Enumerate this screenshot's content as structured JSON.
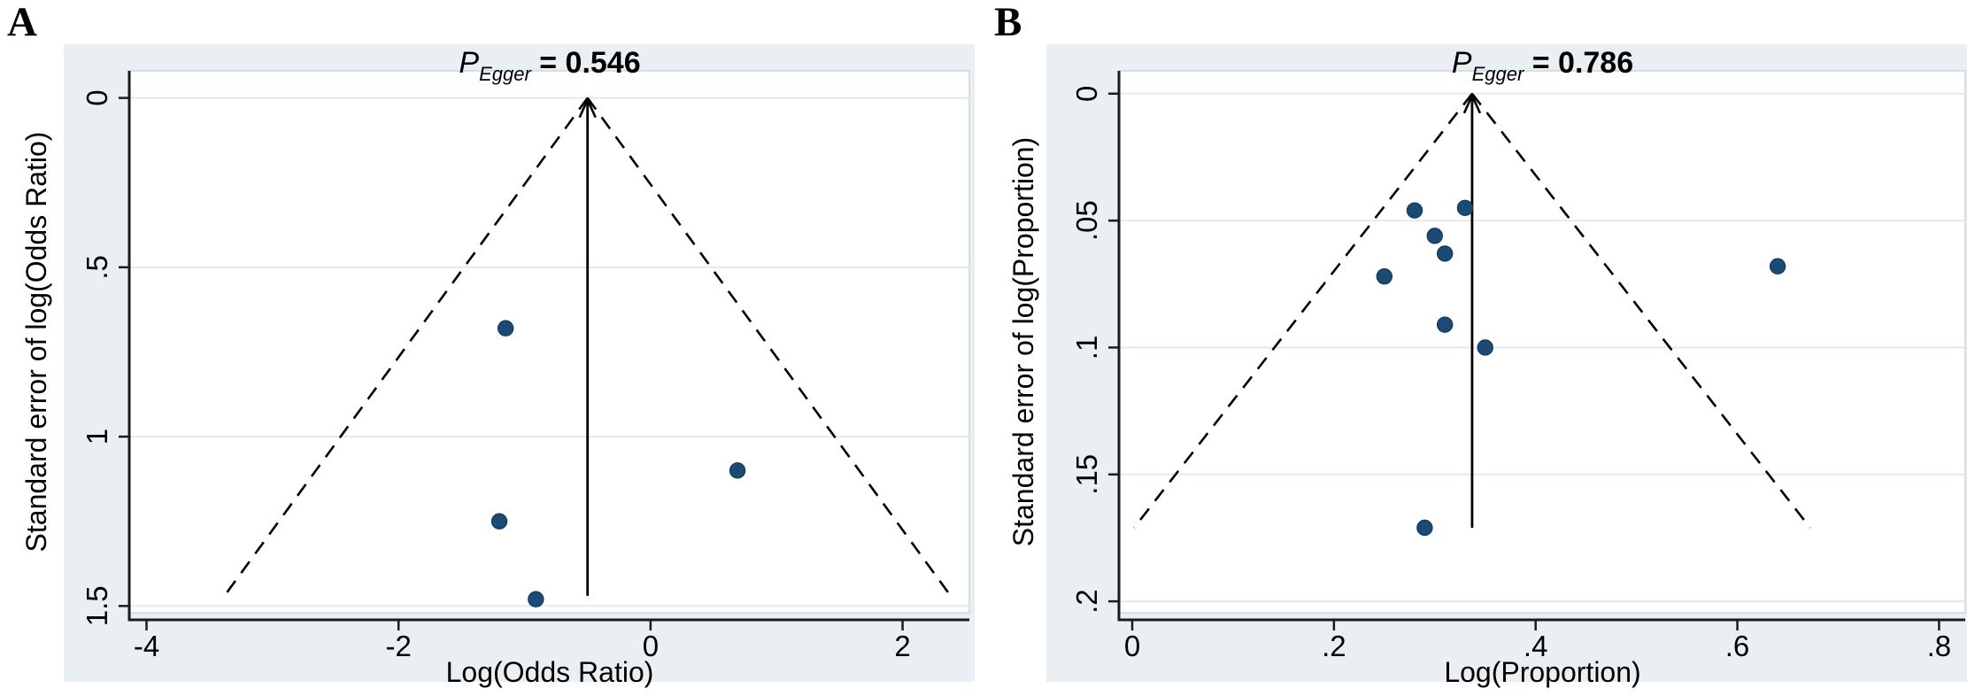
{
  "figure": {
    "background": "#ffffff",
    "panel_labels": [
      "A",
      "B"
    ]
  },
  "colors": {
    "panel_background": "#e9eff2",
    "plot_background": "#ffffff",
    "plot_border": "#ccd8de",
    "gridline": "#e2eaee",
    "axis_line": "#1c1c1c",
    "funnel_line": "#000000",
    "pooled_line": "#000000",
    "dot_fill": "#1b4a75",
    "dot_stroke": "#123a5e",
    "text": "#000000"
  },
  "chart_data": [
    {
      "type": "scatter",
      "subtype": "funnel-plot",
      "panel_label": "A",
      "title": "P_Egger = 0.546",
      "title_parts": {
        "symbol": "P",
        "subscript": "Egger",
        "rest": " = 0.546"
      },
      "xlabel": "Log(Odds Ratio)",
      "ylabel": "Standard error of log(Odds Ratio)",
      "xticks": [
        -4,
        -2,
        0,
        2
      ],
      "xtick_labels": [
        "-4",
        "-2",
        "0",
        "2"
      ],
      "yticks": [
        0,
        0.5,
        1,
        1.5
      ],
      "ytick_labels": [
        "0",
        ".5",
        "1",
        "1.5"
      ],
      "xlim": [
        -4.13,
        2.53
      ],
      "ylim": [
        -0.08,
        1.52
      ],
      "grid": true,
      "legend": "none",
      "pooled_effect": -0.5,
      "max_se": 1.47,
      "ci_multiplier": 1.96,
      "points": [
        {
          "x": -1.15,
          "se": 0.68
        },
        {
          "x": 0.69,
          "se": 1.1
        },
        {
          "x": -1.2,
          "se": 1.25
        },
        {
          "x": -0.91,
          "se": 1.48
        }
      ]
    },
    {
      "type": "scatter",
      "subtype": "funnel-plot",
      "panel_label": "B",
      "title": "P_Egger = 0.786",
      "title_parts": {
        "symbol": "P",
        "subscript": "Egger",
        "rest": " = 0.786"
      },
      "xlabel": "Log(Proportion)",
      "ylabel": "Standard error of log(Proportion)",
      "xticks": [
        0,
        0.2,
        0.4,
        0.6,
        0.8
      ],
      "xtick_labels": [
        "0",
        ".2",
        ".4",
        ".6",
        ".8"
      ],
      "yticks": [
        0,
        0.05,
        0.1,
        0.15,
        0.2
      ],
      "ytick_labels": [
        "0",
        ".05",
        ".1",
        ".15",
        ".2"
      ],
      "xlim": [
        -0.0123,
        0.826
      ],
      "ylim": [
        -0.009,
        0.2045
      ],
      "grid": true,
      "legend": "none",
      "pooled_effect": 0.337,
      "max_se": 0.171,
      "ci_multiplier": 1.96,
      "points": [
        {
          "x": 0.28,
          "se": 0.046
        },
        {
          "x": 0.33,
          "se": 0.045
        },
        {
          "x": 0.3,
          "se": 0.056
        },
        {
          "x": 0.31,
          "se": 0.063
        },
        {
          "x": 0.25,
          "se": 0.072
        },
        {
          "x": 0.64,
          "se": 0.068
        },
        {
          "x": 0.31,
          "se": 0.091
        },
        {
          "x": 0.35,
          "se": 0.1
        },
        {
          "x": 0.29,
          "se": 0.171
        }
      ]
    }
  ]
}
